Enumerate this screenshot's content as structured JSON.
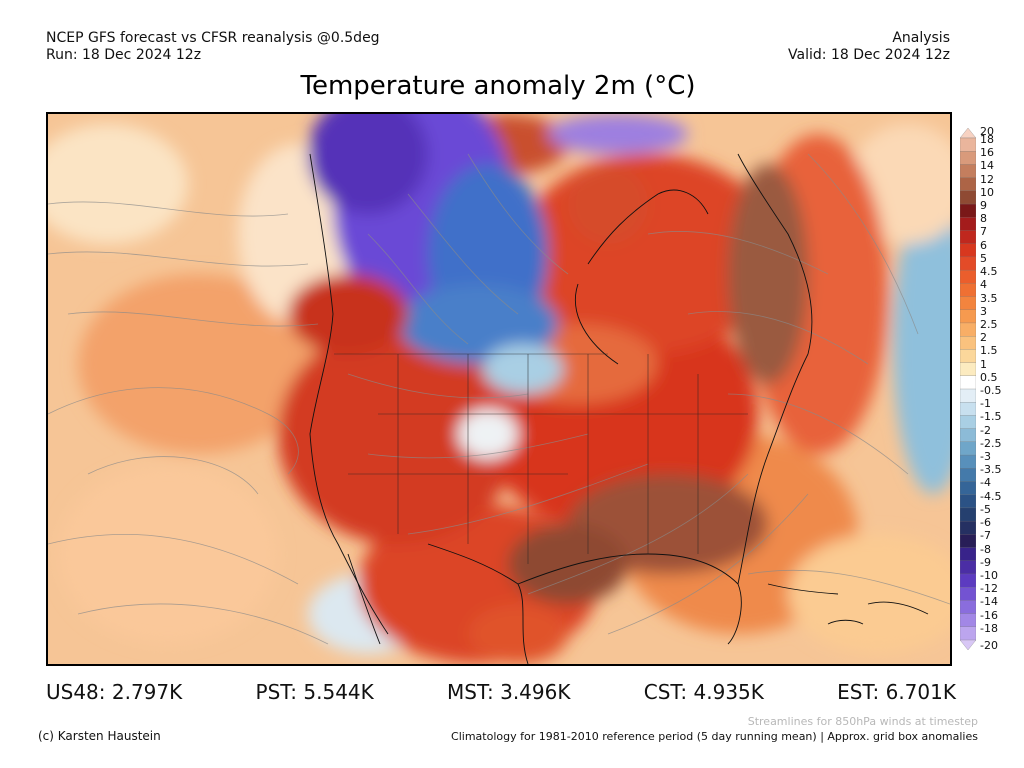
{
  "header": {
    "left_line1": "NCEP GFS forecast vs CFSR reanalysis @0.5deg",
    "left_line2": "Run: 18 Dec 2024 12z",
    "right_line1": "Analysis",
    "right_line2": "Valid: 18 Dec 2024 12z"
  },
  "title": "Temperature anomaly 2m (°C)",
  "colorbar": {
    "labels": [
      "20",
      "18",
      "16",
      "14",
      "12",
      "10",
      "9",
      "8",
      "7",
      "6",
      "5",
      "4.5",
      "4",
      "3.5",
      "3",
      "2.5",
      "2",
      "1.5",
      "1",
      "0.5",
      "-0.5",
      "-1",
      "-1.5",
      "-2",
      "-2.5",
      "-3",
      "-3.5",
      "-4",
      "-4.5",
      "-5",
      "-6",
      "-7",
      "-8",
      "-9",
      "-10",
      "-12",
      "-14",
      "-16",
      "-18",
      "-20"
    ],
    "colors": [
      "#f7d2c2",
      "#eab59c",
      "#d99a7b",
      "#c47e5e",
      "#ad6446",
      "#8f4a33",
      "#7a1818",
      "#a41c1c",
      "#c0281e",
      "#d8381f",
      "#e34b28",
      "#eb5e2c",
      "#ef7033",
      "#f3843e",
      "#f69a4f",
      "#f8ae66",
      "#fac27e",
      "#fbd79b",
      "#fcebc0",
      "#ffffff",
      "#e3eef6",
      "#c8e0ef",
      "#a9cfe4",
      "#8cbbd7",
      "#6fa6c9",
      "#5890bb",
      "#447aaa",
      "#356598",
      "#2b5285",
      "#25406f",
      "#253062",
      "#281e57",
      "#38238a",
      "#4b2ea5",
      "#5c3bc0",
      "#7353d2",
      "#8a6ddd",
      "#a287e6",
      "#bca5ee",
      "#d8c7f5"
    ]
  },
  "map": {
    "background_color": "#f6c596",
    "anomaly_colors": {
      "cold_purple": "#6a49d6",
      "cold_deep": "#5532b8",
      "cold_blue": "#3f6fc9",
      "neutral": "#f2f2f2",
      "warm_red": "#d73a24",
      "warm_brown": "#9c5138",
      "warm_orange": "#ee7b3c"
    }
  },
  "stats": [
    {
      "label": "US48: 2.797K"
    },
    {
      "label": "PST: 5.544K"
    },
    {
      "label": "MST: 3.496K"
    },
    {
      "label": "CST: 4.935K"
    },
    {
      "label": "EST: 6.701K"
    }
  ],
  "footer": {
    "streamline_note": "Streamlines for 850hPa winds at timestep",
    "credit": "(c) Karsten Haustein",
    "climatology_note": "Climatology for 1981-2010 reference period (5 day running mean) | Approx. grid box anomalies"
  }
}
